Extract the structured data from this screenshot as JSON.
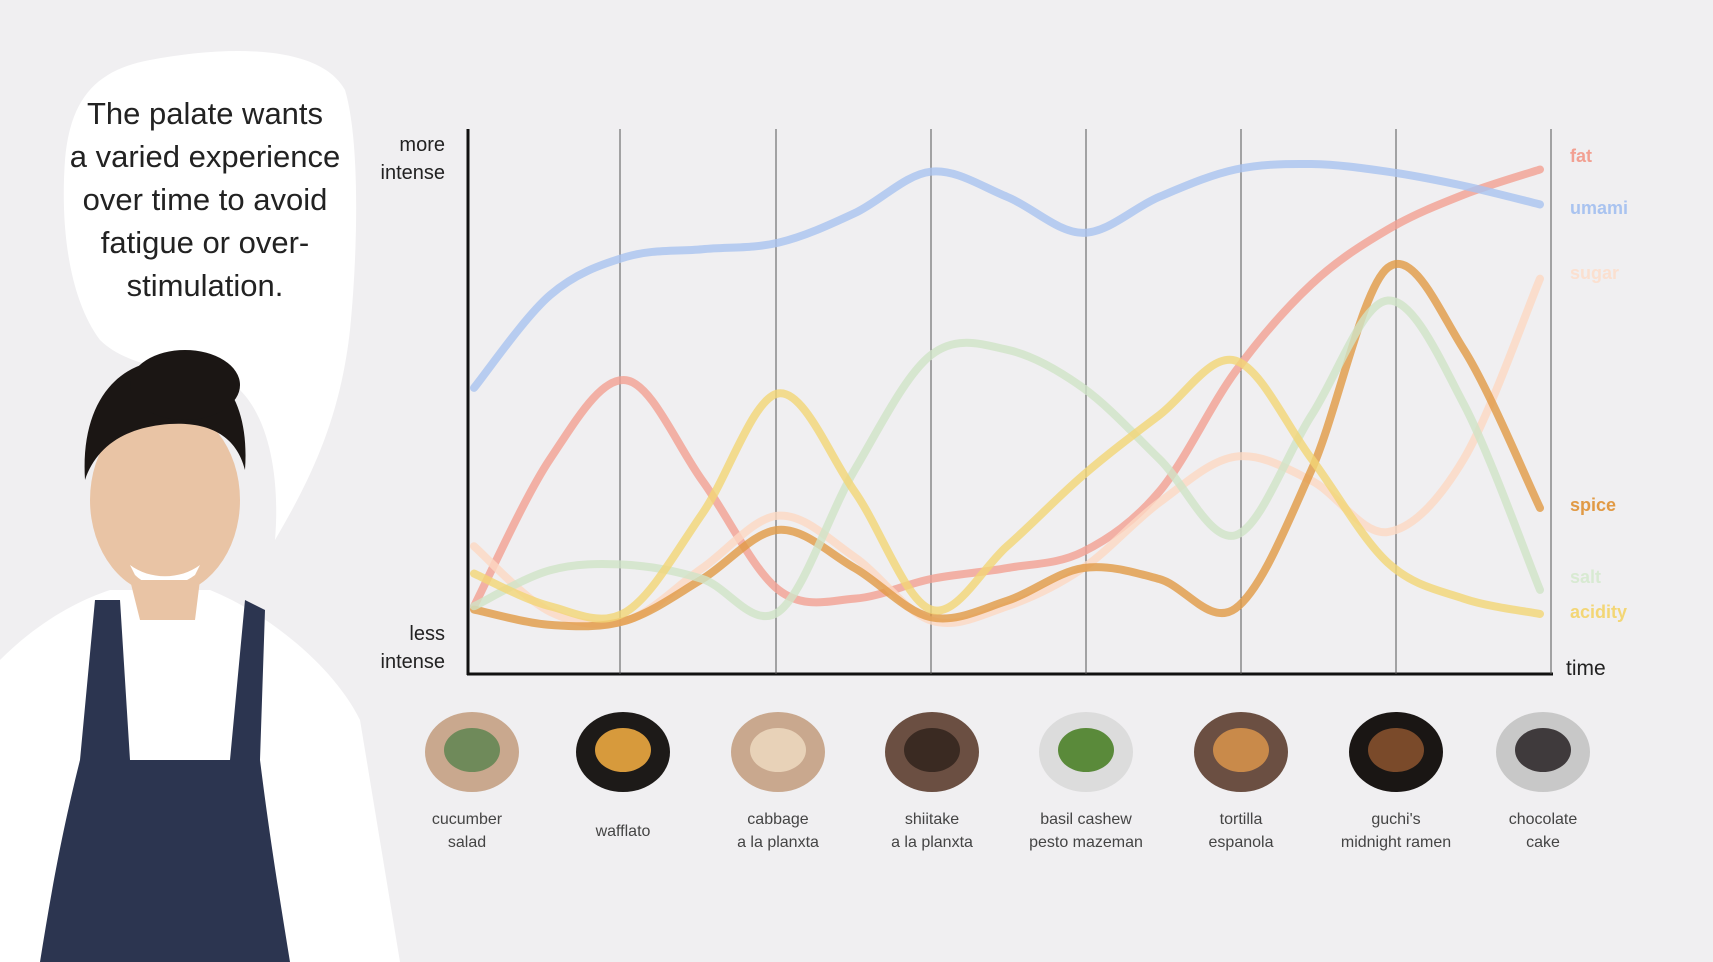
{
  "speech_bubble": {
    "lines": [
      "The palate wants",
      "a varied experience",
      "over time to avoid",
      "fatigue or over-",
      "stimulation."
    ]
  },
  "chart_data": {
    "type": "line",
    "title": "",
    "xlabel": "time",
    "ylabel_top": [
      "more",
      "intense"
    ],
    "ylabel_bottom": [
      "less",
      "intense"
    ],
    "x": [
      0,
      0.5,
      1,
      1.5,
      2,
      2.5,
      3,
      3.5,
      4,
      4.5,
      5,
      5.5,
      6,
      6.5,
      7
    ],
    "xlim": [
      0,
      7
    ],
    "ylim": [
      0,
      10
    ],
    "grid": "vertical lines at each dish",
    "legend": "right",
    "series": [
      {
        "name": "fat",
        "color": "#f2a092",
        "values": [
          1.24,
          3.94,
          5.38,
          3.54,
          1.54,
          1.38,
          1.74,
          1.94,
          2.24,
          3.34,
          5.54,
          7.14,
          8.14,
          8.78,
          9.24
        ]
      },
      {
        "name": "umami",
        "color": "#a9c3f0",
        "values": [
          5.24,
          6.94,
          7.64,
          7.78,
          7.9,
          8.44,
          9.2,
          8.74,
          8.08,
          8.74,
          9.24,
          9.34,
          9.2,
          8.94,
          8.6
        ]
      },
      {
        "name": "sugar",
        "color": "#fcd8c3",
        "values": [
          2.34,
          1.14,
          0.98,
          1.94,
          2.9,
          2.14,
          0.98,
          1.24,
          1.94,
          3.14,
          3.98,
          3.54,
          2.6,
          3.94,
          7.24
        ]
      },
      {
        "name": "spice",
        "color": "#e19a45",
        "values": [
          1.18,
          0.9,
          0.98,
          1.74,
          2.64,
          1.94,
          1.04,
          1.34,
          1.94,
          1.74,
          1.2,
          3.74,
          7.44,
          5.94,
          3.04
        ]
      },
      {
        "name": "salt",
        "color": "#cfe3c7",
        "values": [
          1.24,
          1.9,
          2.0,
          1.74,
          1.14,
          3.74,
          5.84,
          5.94,
          5.24,
          3.94,
          2.54,
          4.74,
          6.84,
          4.94,
          1.54
        ]
      },
      {
        "name": "acidity",
        "color": "#f3d675",
        "values": [
          1.84,
          1.24,
          1.14,
          2.94,
          5.14,
          3.34,
          1.18,
          2.34,
          3.64,
          4.74,
          5.74,
          3.94,
          2.04,
          1.38,
          1.1
        ]
      }
    ]
  },
  "dishes": [
    {
      "lines": [
        "cucumber",
        "salad"
      ]
    },
    {
      "lines": [
        "wafflato"
      ]
    },
    {
      "lines": [
        "cabbage",
        "a la planxta"
      ]
    },
    {
      "lines": [
        "shiitake",
        "a la planxta"
      ]
    },
    {
      "lines": [
        "basil cashew",
        "pesto mazeman"
      ]
    },
    {
      "lines": [
        "tortilla",
        "espanola"
      ]
    },
    {
      "lines": [
        "guchi's",
        "midnight ramen"
      ]
    },
    {
      "lines": [
        "chocolate",
        "cake"
      ]
    }
  ]
}
